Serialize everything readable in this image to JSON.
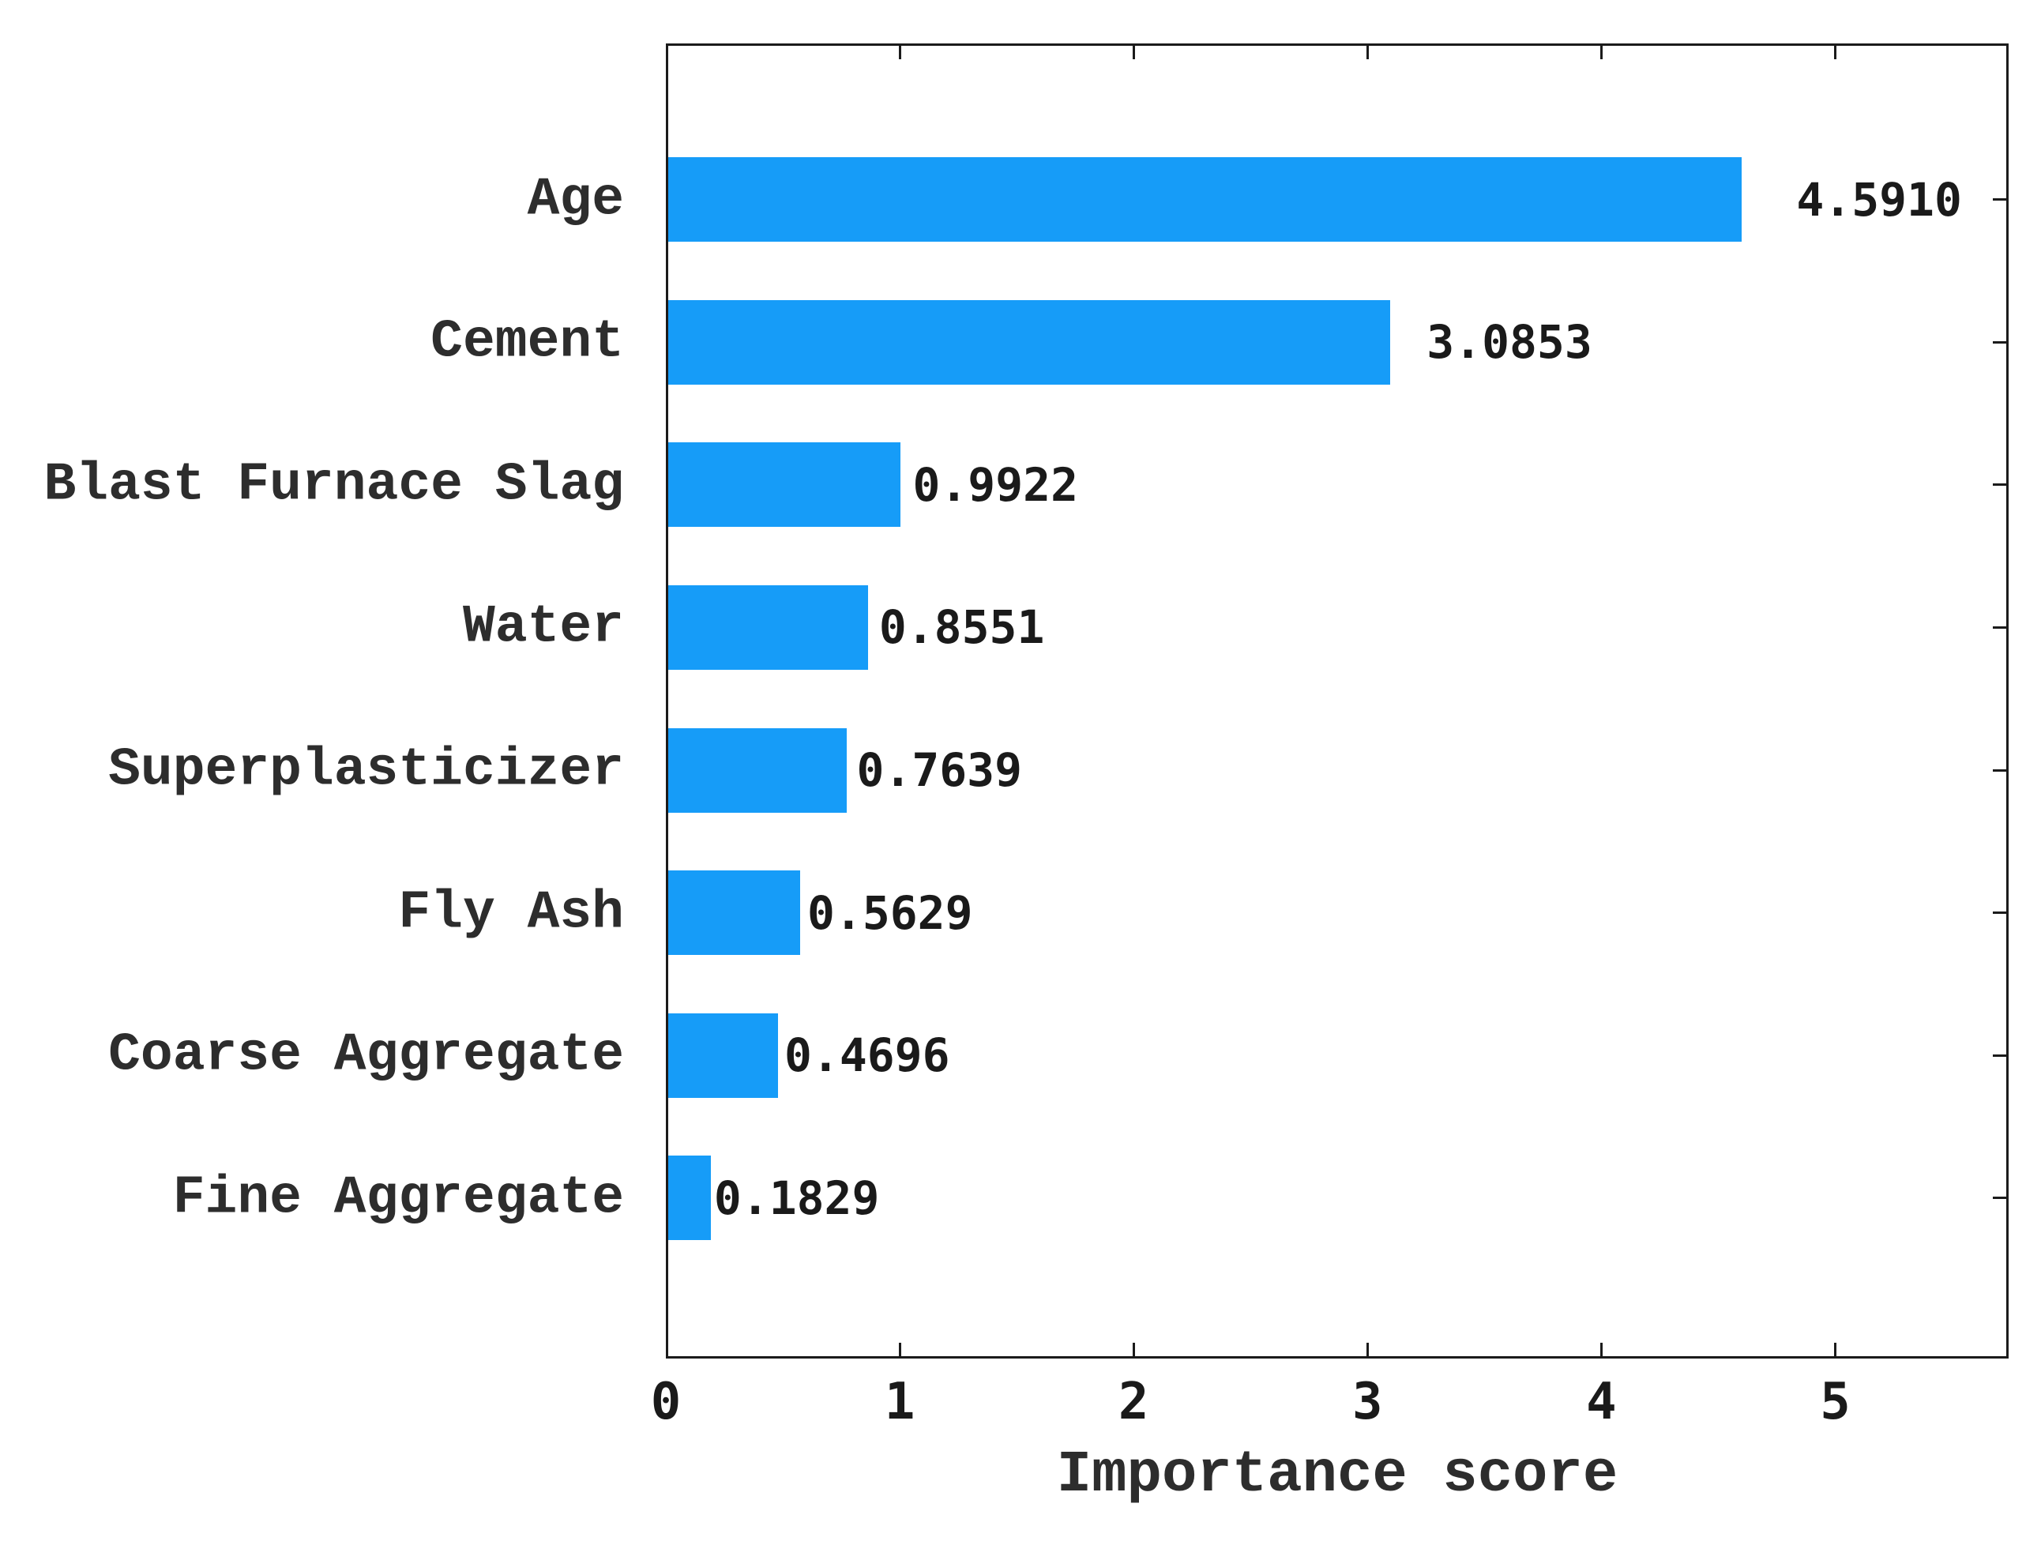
{
  "chart_data": {
    "type": "bar",
    "orientation": "horizontal",
    "title": "",
    "xlabel": "Importance score",
    "ylabel": "",
    "categories": [
      "Age",
      "Cement",
      "Blast Furnace Slag",
      "Water",
      "Superplasticizer",
      "Fly Ash",
      "Coarse Aggregate",
      "Fine Aggregate"
    ],
    "values": [
      4.591,
      3.0853,
      0.9922,
      0.8551,
      0.7639,
      0.5629,
      0.4696,
      0.1829
    ],
    "value_labels": [
      "4.5910",
      "3.0853",
      "0.9922",
      "0.8551",
      "0.7639",
      "0.5629",
      "0.4696",
      "0.1829"
    ],
    "xticks": [
      "0",
      "1",
      "2",
      "3",
      "4",
      "5"
    ],
    "xlim": [
      0,
      5.74
    ],
    "grid": false,
    "legend": null,
    "tick_direction": "in",
    "box": true,
    "colors": {
      "bar": "#169cf8",
      "axis": "#1b1b1b",
      "category_text": "#2d2d2d",
      "number_text": "#1a1a1a",
      "background": "#ffffff"
    }
  }
}
